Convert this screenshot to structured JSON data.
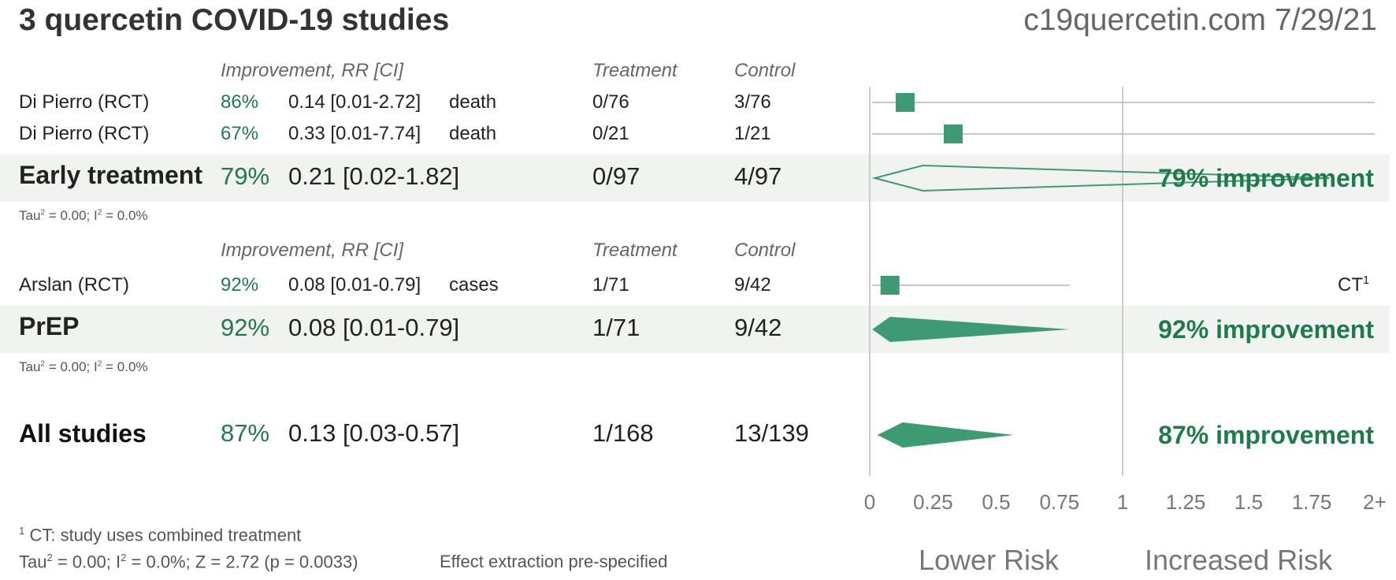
{
  "header": {
    "title": "3 quercetin COVID-19 studies",
    "site": "c19quercetin.com 7/29/21"
  },
  "columns": {
    "improvement": "Improvement, RR [CI]",
    "treatment": "Treatment",
    "control": "Control"
  },
  "groups": [
    {
      "studies": [
        {
          "name": "Di Pierro (RCT)",
          "pct": "86%",
          "rr": "0.14 [0.01-2.72]",
          "outcome": "death",
          "treatment": "0/76",
          "control": "3/76"
        },
        {
          "name": "Di Pierro (RCT)",
          "pct": "67%",
          "rr": "0.33 [0.01-7.74]",
          "outcome": "death",
          "treatment": "0/21",
          "control": "1/21"
        }
      ],
      "summary": {
        "name": "Early treatment",
        "pct": "79%",
        "rr": "0.21 [0.02-1.82]",
        "treatment": "0/97",
        "control": "4/97",
        "improvement_label": "79% improvement"
      },
      "tau_label": "Tau",
      "tau_rest": " = 0.00; I",
      "tau_rest2": " = 0.0%"
    },
    {
      "studies": [
        {
          "name": "Arslan (RCT)",
          "pct": "92%",
          "rr": "0.08 [0.01-0.79]",
          "outcome": "cases",
          "treatment": "1/71",
          "control": "9/42",
          "note": "CT",
          "note_sup": "1"
        }
      ],
      "summary": {
        "name": "PrEP",
        "pct": "92%",
        "rr": "0.08 [0.01-0.79]",
        "treatment": "1/71",
        "control": "9/42",
        "improvement_label": "92% improvement"
      },
      "tau_label": "Tau",
      "tau_rest": " = 0.00; I",
      "tau_rest2": " = 0.0%"
    }
  ],
  "overall": {
    "name": "All studies",
    "pct": "87%",
    "rr": "0.13 [0.03-0.57]",
    "treatment": "1/168",
    "control": "13/139",
    "improvement_label": "87% improvement"
  },
  "footer": {
    "ct_sup": "1",
    "ct_note": "CT: study uses combined treatment",
    "tau_a": "Tau",
    "tau_b": " = 0.00; I",
    "tau_c": " = 0.0%; Z = 2.72 (p = 0.0033)",
    "extraction": "Effect extraction pre-specified"
  },
  "axis": {
    "lower_risk": "Lower Risk",
    "increased_risk": "Increased Risk"
  },
  "colors": {
    "accent": "#1f7a4c",
    "marker": "#3d9a72",
    "band": "#f1f3f1"
  },
  "chart_data": {
    "type": "forest",
    "xscale": "piecewise: linear 0-1 on left half, 1-2 on right half",
    "xlim": [
      0,
      2
    ],
    "xticks": [
      0,
      0.25,
      0.5,
      0.75,
      1,
      1.25,
      1.5,
      1.75,
      2
    ],
    "xtick_labels": [
      "0",
      "0.25",
      "0.5",
      "0.75",
      "1",
      "1.25",
      "1.5",
      "1.75",
      "2+"
    ],
    "studies": [
      {
        "label": "Di Pierro (RCT) death",
        "rr": 0.14,
        "lo": 0.01,
        "hi": 2.72
      },
      {
        "label": "Di Pierro (RCT) death",
        "rr": 0.33,
        "lo": 0.01,
        "hi": 7.74
      },
      {
        "label": "Arslan (RCT) cases",
        "rr": 0.08,
        "lo": 0.01,
        "hi": 0.79
      }
    ],
    "summaries": [
      {
        "label": "Early treatment",
        "rr": 0.21,
        "lo": 0.02,
        "hi": 1.82,
        "filled": false
      },
      {
        "label": "PrEP",
        "rr": 0.08,
        "lo": 0.01,
        "hi": 0.79,
        "filled": true
      },
      {
        "label": "All studies",
        "rr": 0.13,
        "lo": 0.03,
        "hi": 0.57,
        "filled": true
      }
    ]
  }
}
